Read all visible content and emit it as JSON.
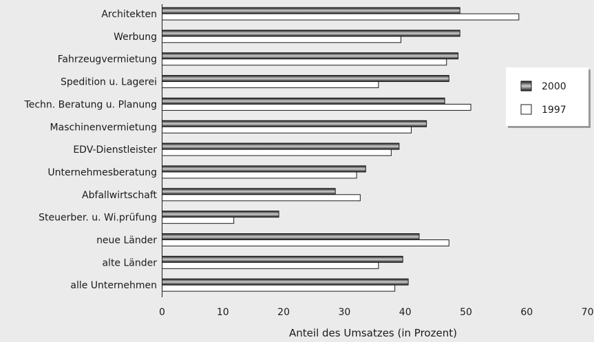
{
  "chart_data": {
    "type": "bar",
    "orientation": "horizontal",
    "title": "",
    "xlabel": "Anteil des Umsatzes (in Prozent)",
    "ylabel": "",
    "xlim": [
      0,
      70
    ],
    "xticks": [
      0,
      10,
      20,
      30,
      40,
      50,
      60,
      70
    ],
    "grid": false,
    "legend_position": "right",
    "categories": [
      "Architekten",
      "Werbung",
      "Fahrzeugvermietung",
      "Spedition u. Lagerei",
      "Techn. Beratung u. Planung",
      "Maschinenvermietung",
      "EDV-Dienstleister",
      "Unternehmesberatung",
      "Abfallwirtschaft",
      "Steuerber. u. Wi.prüfung",
      "neue Länder",
      "alte Länder",
      "alle Unternehmen"
    ],
    "series": [
      {
        "name": "2000",
        "color": "#333333",
        "fill": "gradient-dark",
        "values": [
          49.0,
          49.0,
          48.7,
          47.2,
          46.5,
          43.5,
          39.0,
          33.5,
          28.5,
          19.2,
          42.3,
          39.6,
          40.5
        ]
      },
      {
        "name": "1997",
        "color": "#ffffff",
        "fill": "white",
        "values": [
          58.7,
          39.3,
          46.8,
          35.6,
          50.8,
          41.0,
          37.7,
          32.0,
          32.6,
          11.8,
          47.2,
          35.6,
          38.3
        ]
      }
    ]
  }
}
